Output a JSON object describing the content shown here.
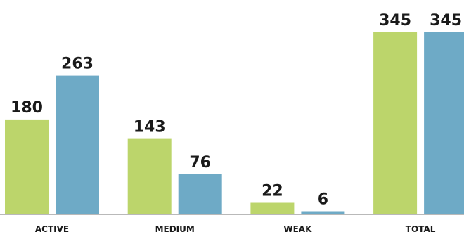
{
  "chart_data": {
    "type": "bar",
    "categories": [
      "ACTIVE",
      "MEDIUM",
      "WEAK",
      "TOTAL"
    ],
    "series": [
      {
        "values": [
          180,
          143,
          22,
          345
        ],
        "color": "#bcd56b"
      },
      {
        "values": [
          263,
          76,
          6,
          345
        ],
        "color": "#6eaac6"
      }
    ],
    "ylim": [
      0,
      345
    ],
    "grid": false,
    "legend": "none",
    "baseline_color": "#b9b9b9"
  }
}
